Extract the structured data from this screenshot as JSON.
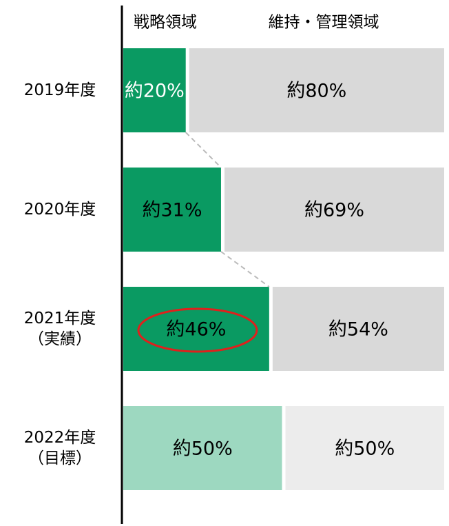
{
  "chart_data": {
    "type": "bar",
    "orientation": "horizontal",
    "stacked": true,
    "categories": [
      "2019年度",
      "2020年度",
      "2021年度\n（実績）",
      "2022年度\n（目標）"
    ],
    "series": [
      {
        "name": "戦略領域",
        "color": "#0a9a62",
        "colors": [
          "#0a9a62",
          "#0a9a62",
          "#0a9a62",
          "#9dd8c0"
        ],
        "label_colors": [
          "#ffffff",
          "#000000",
          "#000000",
          "#000000"
        ],
        "values": [
          20,
          31,
          46,
          50
        ],
        "value_labels": [
          "約20%",
          "約31%",
          "約46%",
          "約50%"
        ]
      },
      {
        "name": "維持・管理領域",
        "color": "#d9d9d9",
        "colors": [
          "#d9d9d9",
          "#d9d9d9",
          "#d9d9d9",
          "#ececec"
        ],
        "label_colors": [
          "#000000",
          "#000000",
          "#000000",
          "#000000"
        ],
        "values": [
          80,
          69,
          54,
          50
        ],
        "value_labels": [
          "約80%",
          "約69%",
          "約54%",
          "約50%"
        ]
      }
    ],
    "xlim": [
      0,
      100
    ]
  }
}
